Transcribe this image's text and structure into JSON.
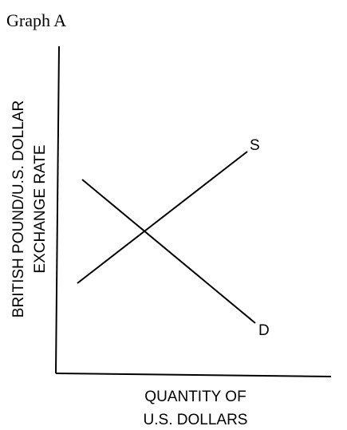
{
  "title": "Graph A",
  "y_axis_label": [
    "BRITISH POUND/U.S. DOLLAR",
    "EXCHANGE RATE"
  ],
  "x_axis_label": [
    "QUANTITY OF",
    "U.S. DOLLARS"
  ],
  "curves": [
    {
      "label": "S"
    },
    {
      "label": "D"
    }
  ]
}
